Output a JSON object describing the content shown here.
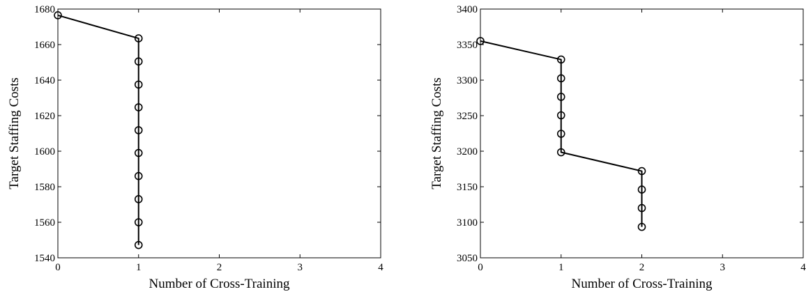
{
  "chart_data": [
    {
      "type": "line",
      "xlabel": "Number of Cross-Training",
      "ylabel": "Target Staffing Costs",
      "xlim": [
        0,
        4
      ],
      "ylim": [
        1540,
        1680
      ],
      "xticks": [
        0,
        1,
        2,
        3,
        4
      ],
      "yticks": [
        1540,
        1560,
        1580,
        1600,
        1620,
        1640,
        1660,
        1680
      ],
      "grid": false,
      "series": [
        {
          "marker": "circle",
          "x": [
            0,
            1,
            1,
            1,
            1,
            1,
            1,
            1,
            1,
            1,
            1
          ],
          "y": [
            1676.5,
            1663.5,
            1650.5,
            1637.5,
            1624.7,
            1611.8,
            1599,
            1586,
            1573,
            1560,
            1547.2
          ]
        }
      ]
    },
    {
      "type": "line",
      "xlabel": "Number of Cross-Training",
      "ylabel": "Target Staffing Costs",
      "xlim": [
        0,
        4
      ],
      "ylim": [
        3050,
        3400
      ],
      "xticks": [
        0,
        1,
        2,
        3,
        4
      ],
      "yticks": [
        3050,
        3100,
        3150,
        3200,
        3250,
        3300,
        3350,
        3400
      ],
      "grid": false,
      "series": [
        {
          "marker": "circle",
          "x": [
            0,
            1,
            1,
            1,
            1,
            1,
            1,
            2,
            2,
            2,
            2
          ],
          "y": [
            3355,
            3329,
            3302.5,
            3276.5,
            3250.5,
            3224.5,
            3198.5,
            3172,
            3146,
            3120,
            3093.5
          ]
        }
      ]
    }
  ]
}
